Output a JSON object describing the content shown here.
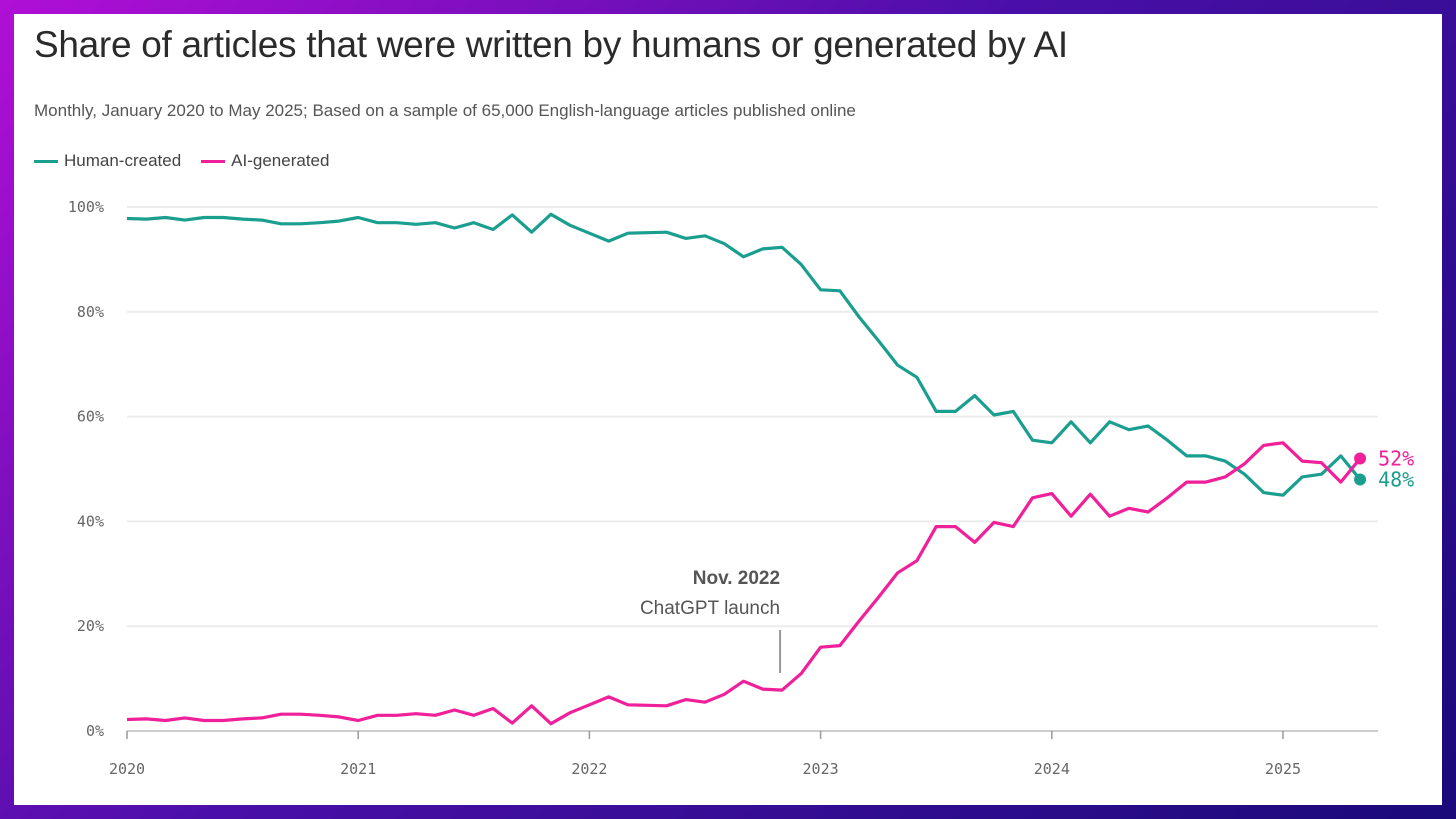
{
  "chart_data": {
    "type": "line",
    "title": "Share of articles that were written by humans or generated by AI",
    "subtitle": "Monthly, January 2020 to May 2025; Based on a sample of 65,000 English-language articles published online",
    "xlabel": "",
    "ylabel": "",
    "ylim": [
      0,
      100
    ],
    "x_start": "2020-01",
    "x_ticks": [
      "2020",
      "2021",
      "2022",
      "2023",
      "2024",
      "2025"
    ],
    "y_ticks": [
      "0%",
      "20%",
      "40%",
      "60%",
      "80%",
      "100%"
    ],
    "grid": true,
    "legend_position": "top-left",
    "series": [
      {
        "name": "Human-created",
        "color": "#1a9e8f",
        "end_label": "48%",
        "values": [
          97.8,
          97.7,
          98,
          97.5,
          98,
          98,
          97.7,
          97.5,
          96.8,
          96.8,
          97,
          97.3,
          98,
          97,
          97,
          96.7,
          97,
          96,
          97,
          95.7,
          98.5,
          95.2,
          98.6,
          96.5,
          95,
          93.5,
          95,
          95.1,
          95.2,
          94,
          94.5,
          93,
          90.5,
          92,
          92.3,
          89,
          84.2,
          84,
          79,
          74.5,
          69.8,
          67.5,
          61,
          61,
          64,
          60.3,
          61,
          55.5,
          55,
          59,
          55,
          59,
          57.5,
          58.2,
          55.5,
          52.5,
          52.5,
          51.5,
          49,
          45.5,
          45,
          48.5,
          49,
          52.5,
          48
        ]
      },
      {
        "name": "AI-generated",
        "color": "#f01f9a",
        "end_label": "52%",
        "values": [
          2.2,
          2.3,
          2,
          2.5,
          2,
          2,
          2.3,
          2.5,
          3.2,
          3.2,
          3,
          2.7,
          2,
          3,
          3,
          3.3,
          3,
          4,
          3,
          4.3,
          1.5,
          4.8,
          1.4,
          3.5,
          5,
          6.5,
          5,
          4.9,
          4.8,
          6,
          5.5,
          7,
          9.5,
          8,
          7.8,
          11,
          16,
          16.3,
          21,
          25.5,
          30.2,
          32.5,
          39,
          39,
          36,
          39.8,
          39,
          44.5,
          45.3,
          41,
          45.2,
          41,
          42.5,
          41.8,
          44.5,
          47.5,
          47.5,
          48.5,
          51,
          54.5,
          55,
          51.5,
          51.2,
          47.5,
          52
        ]
      }
    ],
    "annotation": {
      "title": "Nov. 2022",
      "text": "ChatGPT launch",
      "month_index": 34
    }
  }
}
